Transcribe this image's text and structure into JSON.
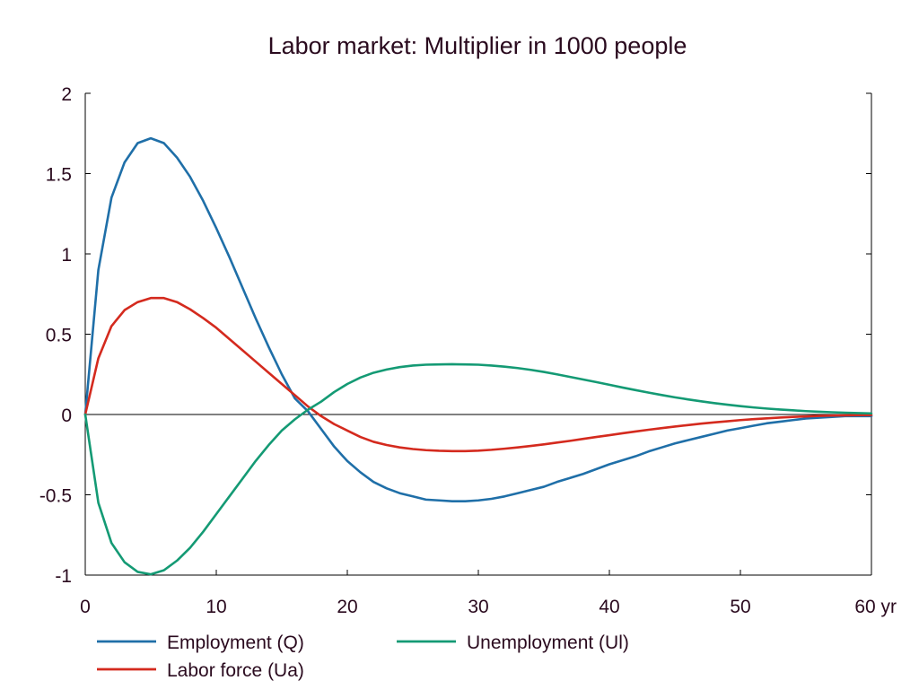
{
  "chart_data": {
    "type": "line",
    "title": "Labor market: Multiplier in 1000 people",
    "xlabel": "",
    "ylabel": "",
    "x_unit": "yr",
    "xlim": [
      0,
      60
    ],
    "ylim": [
      -1,
      2
    ],
    "x_ticks": [
      0,
      10,
      20,
      30,
      40,
      50,
      60
    ],
    "x_tick_labels": [
      "0",
      "10",
      "20",
      "30",
      "40",
      "50",
      "60 yr"
    ],
    "y_ticks": [
      2,
      1.5,
      1,
      0.5,
      0,
      -0.5,
      -1
    ],
    "y_tick_labels": [
      "2",
      "1.5",
      "1",
      "0.5",
      "0",
      "-0.5",
      "-1"
    ],
    "grid": false,
    "legend_position": "bottom",
    "x": [
      0,
      1,
      2,
      3,
      4,
      5,
      6,
      7,
      8,
      9,
      10,
      11,
      12,
      13,
      14,
      15,
      16,
      17,
      18,
      19,
      20,
      21,
      22,
      23,
      24,
      25,
      26,
      27,
      28,
      29,
      30,
      31,
      32,
      33,
      34,
      35,
      36,
      37,
      38,
      39,
      40,
      41,
      42,
      43,
      44,
      45,
      46,
      47,
      48,
      49,
      50,
      51,
      52,
      53,
      54,
      55,
      56,
      57,
      58,
      59,
      60
    ],
    "series": [
      {
        "name": "Employment (Q)",
        "color": "#1f6fa8",
        "values": [
          0,
          0.9,
          1.35,
          1.57,
          1.69,
          1.72,
          1.69,
          1.6,
          1.48,
          1.33,
          1.16,
          0.98,
          0.79,
          0.6,
          0.42,
          0.25,
          0.1,
          0.02,
          -0.09,
          -0.2,
          -0.29,
          -0.36,
          -0.42,
          -0.46,
          -0.49,
          -0.51,
          -0.53,
          -0.535,
          -0.54,
          -0.54,
          -0.535,
          -0.525,
          -0.51,
          -0.49,
          -0.47,
          -0.45,
          -0.42,
          -0.395,
          -0.37,
          -0.34,
          -0.31,
          -0.285,
          -0.26,
          -0.23,
          -0.205,
          -0.18,
          -0.16,
          -0.14,
          -0.12,
          -0.1,
          -0.085,
          -0.07,
          -0.055,
          -0.045,
          -0.035,
          -0.025,
          -0.02,
          -0.015,
          -0.01,
          -0.01,
          -0.01
        ]
      },
      {
        "name": "Labor force (Ua)",
        "color": "#d42a1e",
        "values": [
          0,
          0.35,
          0.55,
          0.65,
          0.7,
          0.725,
          0.725,
          0.7,
          0.655,
          0.6,
          0.54,
          0.47,
          0.4,
          0.33,
          0.26,
          0.19,
          0.12,
          0.05,
          -0.01,
          -0.06,
          -0.1,
          -0.14,
          -0.17,
          -0.19,
          -0.205,
          -0.215,
          -0.222,
          -0.226,
          -0.228,
          -0.228,
          -0.225,
          -0.22,
          -0.213,
          -0.205,
          -0.196,
          -0.186,
          -0.175,
          -0.164,
          -0.152,
          -0.14,
          -0.129,
          -0.117,
          -0.106,
          -0.095,
          -0.085,
          -0.075,
          -0.066,
          -0.057,
          -0.049,
          -0.042,
          -0.035,
          -0.029,
          -0.024,
          -0.019,
          -0.015,
          -0.012,
          -0.009,
          -0.007,
          -0.005,
          -0.004,
          -0.003
        ]
      },
      {
        "name": "Unemployment (Ul)",
        "color": "#149a74",
        "values": [
          0,
          -0.55,
          -0.8,
          -0.92,
          -0.98,
          -0.995,
          -0.97,
          -0.91,
          -0.83,
          -0.73,
          -0.62,
          -0.51,
          -0.4,
          -0.29,
          -0.19,
          -0.1,
          -0.03,
          0.03,
          0.08,
          0.14,
          0.19,
          0.23,
          0.26,
          0.28,
          0.295,
          0.305,
          0.31,
          0.312,
          0.313,
          0.312,
          0.31,
          0.305,
          0.298,
          0.289,
          0.278,
          0.265,
          0.25,
          0.234,
          0.218,
          0.202,
          0.185,
          0.168,
          0.152,
          0.136,
          0.121,
          0.107,
          0.094,
          0.082,
          0.071,
          0.061,
          0.052,
          0.044,
          0.037,
          0.031,
          0.026,
          0.021,
          0.017,
          0.014,
          0.011,
          0.009,
          0.007
        ]
      }
    ]
  }
}
